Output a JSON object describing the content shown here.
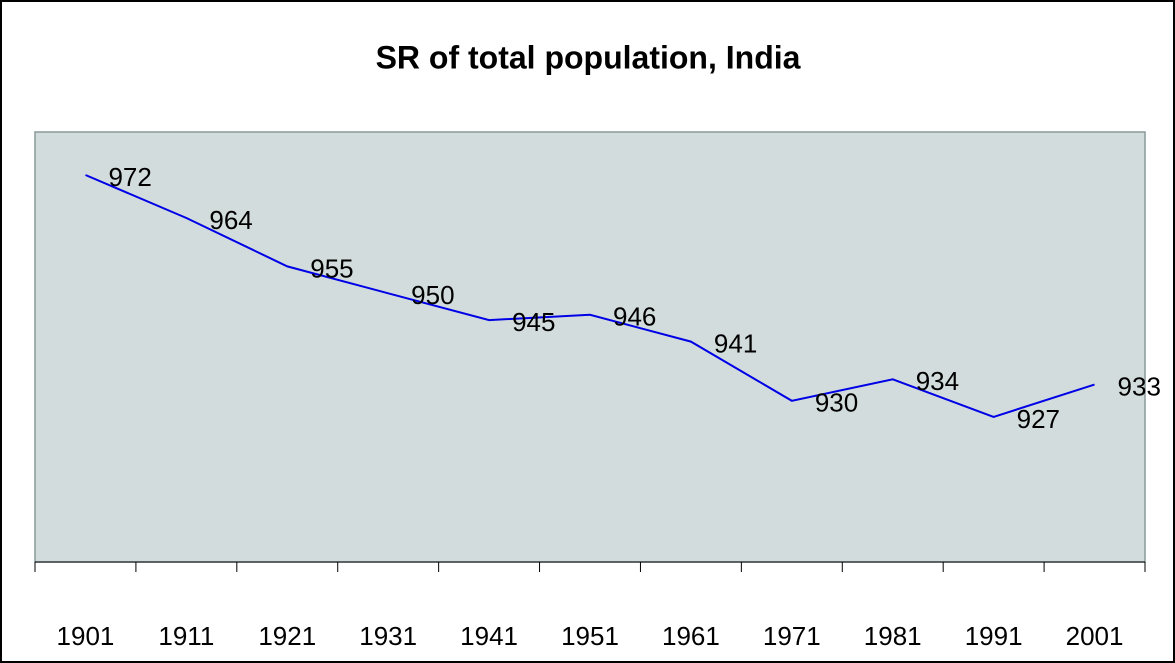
{
  "chart_data": {
    "type": "line",
    "title": "SR of total population, India",
    "categories": [
      "1901",
      "1911",
      "1921",
      "1931",
      "1941",
      "1951",
      "1961",
      "1971",
      "1981",
      "1991",
      "2001"
    ],
    "values": [
      972,
      964,
      955,
      950,
      945,
      946,
      941,
      930,
      934,
      927,
      933
    ],
    "color": "#0000e6",
    "ylim": [
      900,
      980
    ]
  }
}
